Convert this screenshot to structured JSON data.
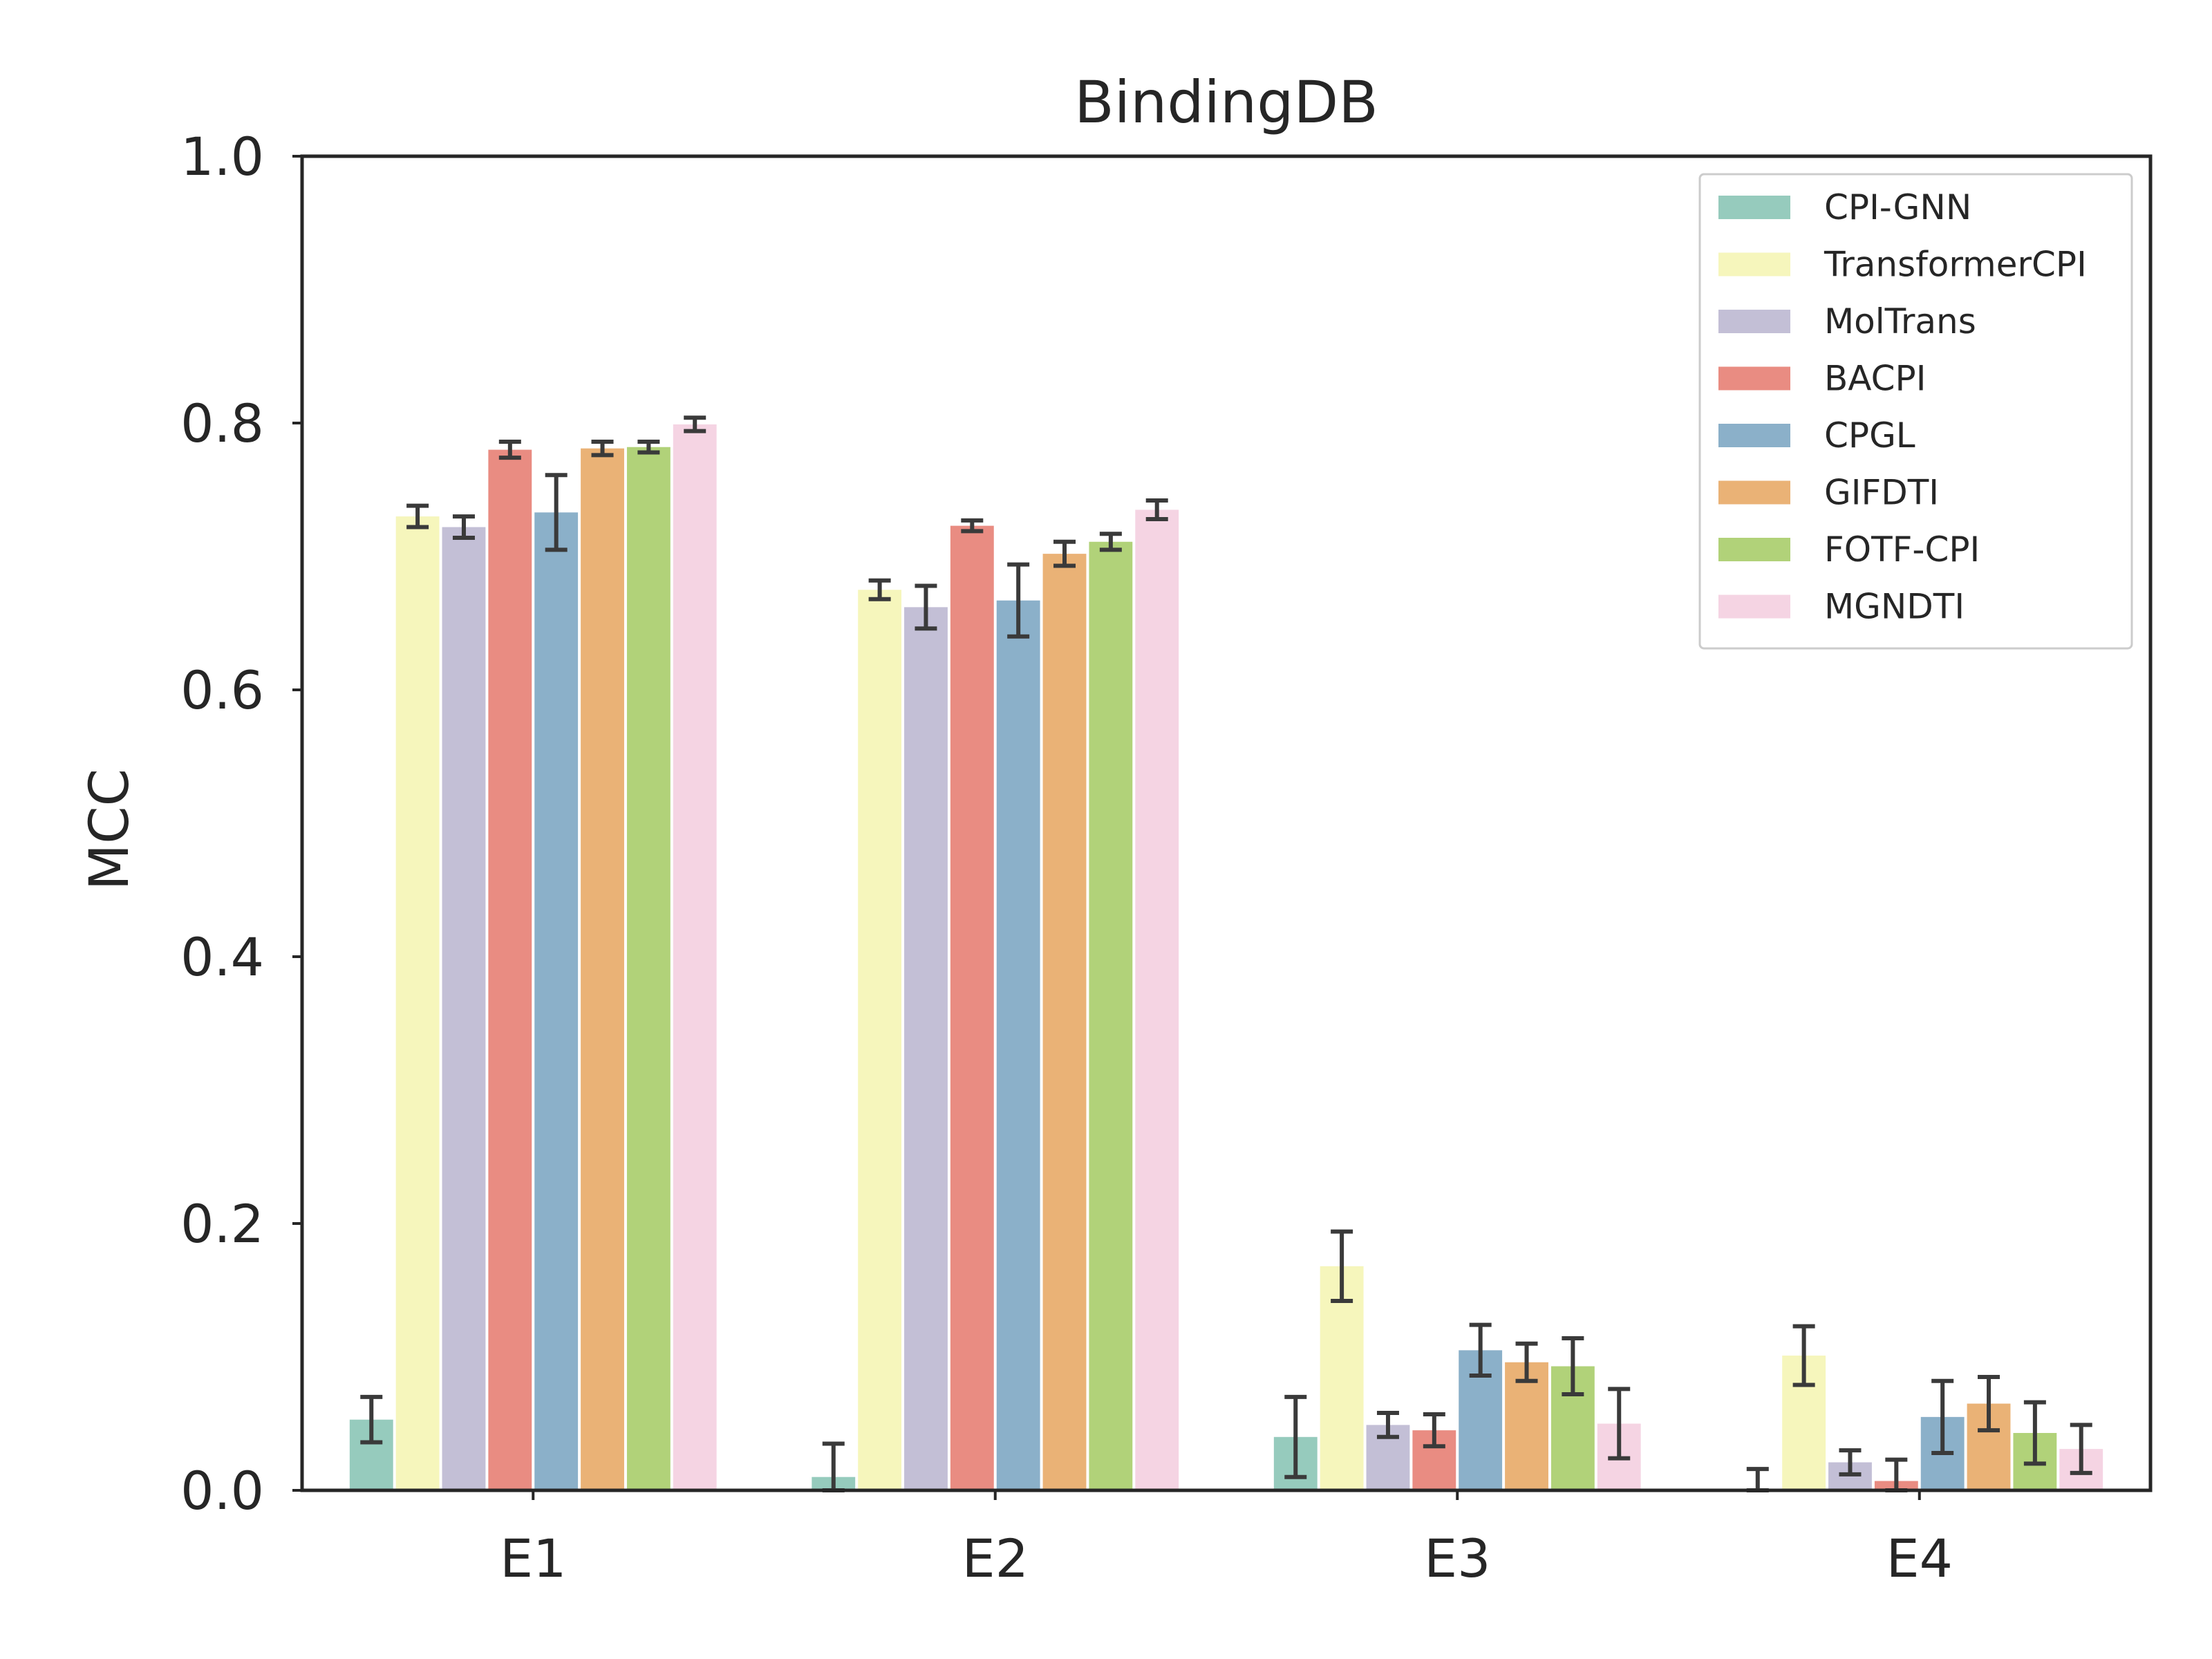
{
  "chart_data": {
    "type": "bar",
    "title": "BindingDB",
    "xlabel": "",
    "ylabel": "MCC",
    "ylim": [
      0,
      1.0
    ],
    "yticks": [
      "0.0",
      "0.2",
      "0.4",
      "0.6",
      "0.8",
      "1.0"
    ],
    "categories": [
      "E1",
      "E2",
      "E3",
      "E4"
    ],
    "grid": false,
    "legend_position": "top-right",
    "error_bars": true,
    "series": [
      {
        "name": "CPI-GNN",
        "color": "#96cbbd",
        "values": [
          0.053,
          0.01,
          0.04,
          0.0
        ],
        "errors": [
          0.017,
          0.025,
          0.03,
          0.016
        ]
      },
      {
        "name": "TransformerCPI",
        "color": "#f6f6bc",
        "values": [
          0.73,
          0.675,
          0.168,
          0.101
        ],
        "errors": [
          0.008,
          0.007,
          0.026,
          0.022
        ]
      },
      {
        "name": "MolTrans",
        "color": "#c3bfd6",
        "values": [
          0.722,
          0.662,
          0.049,
          0.021
        ],
        "errors": [
          0.008,
          0.016,
          0.009,
          0.009
        ]
      },
      {
        "name": "BACPI",
        "color": "#e98c82",
        "values": [
          0.78,
          0.723,
          0.045,
          0.007
        ],
        "errors": [
          0.006,
          0.004,
          0.012,
          0.016
        ]
      },
      {
        "name": "CPGL",
        "color": "#8bb0c9",
        "values": [
          0.733,
          0.667,
          0.105,
          0.055
        ],
        "errors": [
          0.028,
          0.027,
          0.019,
          0.027
        ]
      },
      {
        "name": "GIFDTI",
        "color": "#eab276",
        "values": [
          0.781,
          0.702,
          0.096,
          0.065
        ],
        "errors": [
          0.005,
          0.009,
          0.014,
          0.02
        ]
      },
      {
        "name": "FOTF-CPI",
        "color": "#b1d279",
        "values": [
          0.782,
          0.711,
          0.093,
          0.043
        ],
        "errors": [
          0.004,
          0.006,
          0.021,
          0.023
        ]
      },
      {
        "name": "MGNDTI",
        "color": "#f5d4e3",
        "values": [
          0.799,
          0.735,
          0.05,
          0.031
        ],
        "errors": [
          0.005,
          0.007,
          0.026,
          0.018
        ]
      }
    ]
  }
}
